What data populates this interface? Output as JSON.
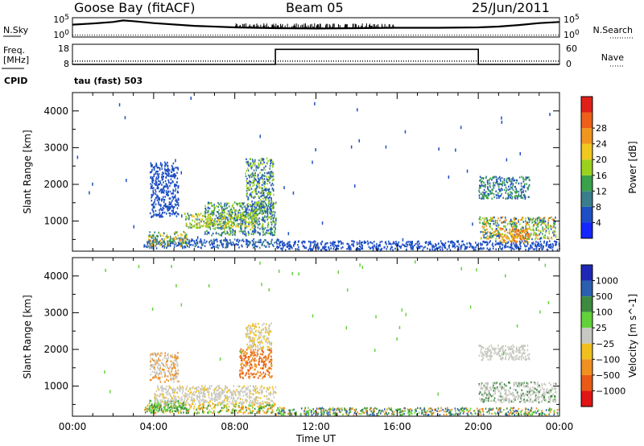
{
  "header": {
    "station": "Goose Bay (fitACF)",
    "beam": "Beam 05",
    "date": "25/Jun/2011"
  },
  "chart_data": [
    {
      "type": "line",
      "panel": "noise",
      "left_label": "N.Sky",
      "right_label": "N.Search",
      "left_ticks": [
        "10^5",
        "10^0"
      ],
      "right_ticks": [
        "10^5",
        "10^0"
      ],
      "x": [
        0,
        1,
        2,
        2.5,
        3,
        4,
        6,
        8,
        10,
        12,
        14,
        16,
        18,
        20,
        21,
        22,
        23,
        24
      ],
      "y": [
        3.2,
        3.5,
        3.9,
        4.3,
        4.1,
        3.6,
        2.9,
        2.5,
        2.3,
        2.2,
        2.3,
        2.4,
        2.4,
        2.5,
        2.7,
        3.1,
        3.6,
        3.9
      ],
      "ylim": [
        0,
        5
      ],
      "xlim": [
        0,
        24
      ],
      "search_noise_level": 0.5
    },
    {
      "type": "line",
      "panel": "frequency",
      "left_label": "Freq. [MHz]",
      "right_label": "Nave",
      "left_ticks": [
        "18",
        "8"
      ],
      "right_ticks": [
        "60",
        "0"
      ],
      "freq_x": [
        0,
        10,
        10,
        20,
        20,
        24
      ],
      "freq_y": [
        8,
        8,
        15.5,
        15.5,
        8,
        8
      ],
      "freq_ylim": [
        8,
        18
      ],
      "nave": 10,
      "nave_ylim": [
        0,
        60
      ]
    },
    {
      "type": "table",
      "panel": "cpid",
      "label": "CPID",
      "text": "tau (fast) 503"
    },
    {
      "type": "heatmap",
      "panel": "power",
      "xlabel": "",
      "ylabel": "Slant Range [km]",
      "xlim": [
        0,
        24
      ],
      "ylim": [
        180,
        4500
      ],
      "yticks": [
        1000,
        2000,
        3000,
        4000
      ],
      "colorbar_label": "Power [dB]",
      "colorbar_ticks": [
        "4",
        "8",
        "12",
        "16",
        "20",
        "24",
        "28"
      ],
      "colorbar_colors": [
        "#1427ff",
        "#1d4ec4",
        "#3a7d8c",
        "#3aa14a",
        "#9bd21e",
        "#f0c81e",
        "#f0961e",
        "#ee5f1a",
        "#e02018"
      ],
      "regions": [
        {
          "t0": 3.5,
          "t1": 10.2,
          "r0": 250,
          "r1": 500,
          "values": [
            4,
            6,
            8
          ]
        },
        {
          "t0": 3.7,
          "t1": 5.6,
          "r0": 300,
          "r1": 700,
          "values": [
            8,
            14,
            20,
            24
          ]
        },
        {
          "t0": 6.5,
          "t1": 10.0,
          "r0": 600,
          "r1": 1500,
          "values": [
            6,
            10,
            14,
            18
          ]
        },
        {
          "t0": 5.5,
          "t1": 9.0,
          "r0": 800,
          "r1": 1200,
          "values": [
            10,
            16,
            20
          ]
        },
        {
          "t0": 3.8,
          "t1": 5.2,
          "r0": 1100,
          "r1": 2600,
          "values": [
            4,
            6
          ]
        },
        {
          "t0": 8.5,
          "t1": 9.9,
          "r0": 1200,
          "r1": 2700,
          "values": [
            4,
            8,
            16
          ]
        },
        {
          "t0": 10.0,
          "t1": 24.0,
          "r0": 200,
          "r1": 450,
          "values": [
            4,
            6
          ]
        },
        {
          "t0": 20.0,
          "t1": 22.5,
          "r0": 1600,
          "r1": 2200,
          "values": [
            4,
            8,
            14
          ]
        },
        {
          "t0": 20.0,
          "t1": 23.8,
          "r0": 500,
          "r1": 1100,
          "values": [
            6,
            12,
            18,
            24
          ]
        },
        {
          "t0": 21.0,
          "t1": 22.5,
          "r0": 400,
          "r1": 800,
          "values": [
            20,
            24,
            28
          ]
        }
      ]
    },
    {
      "type": "heatmap",
      "panel": "velocity",
      "xlabel": "Time UT",
      "ylabel": "Slant Range [km]",
      "xlim": [
        0,
        24
      ],
      "ylim": [
        180,
        4500
      ],
      "yticks": [
        1000,
        2000,
        3000,
        4000
      ],
      "xticks": [
        "00:00",
        "04:00",
        "08:00",
        "12:00",
        "16:00",
        "20:00",
        "00:00"
      ],
      "colorbar_label": "Velocity [m s^-1]",
      "colorbar_ticks": [
        "1000",
        "500",
        "100",
        "25",
        "−25",
        "−100",
        "−500",
        "−1000"
      ],
      "colorbar_colors": [
        "#1e28b4",
        "#2d5fb0",
        "#3e8a40",
        "#62d23a",
        "#c8c8c2",
        "#f0c01e",
        "#ef9020",
        "#e85a16",
        "#e01515"
      ],
      "regions": [
        {
          "t0": 3.5,
          "t1": 10.2,
          "r0": 250,
          "r1": 500,
          "values": [
            25,
            -25,
            100,
            -100
          ]
        },
        {
          "t0": 3.7,
          "t1": 5.6,
          "r0": 300,
          "r1": 600,
          "values": [
            100,
            25
          ]
        },
        {
          "t0": 4.0,
          "t1": 10.0,
          "r0": 500,
          "r1": 1000,
          "values": [
            0,
            0,
            0,
            -25
          ]
        },
        {
          "t0": 8.2,
          "t1": 9.8,
          "r0": 1200,
          "r1": 2000,
          "values": [
            -100,
            -500
          ]
        },
        {
          "t0": 8.5,
          "t1": 9.8,
          "r0": 2000,
          "r1": 2700,
          "values": [
            0,
            -25
          ]
        },
        {
          "t0": 3.8,
          "t1": 5.2,
          "r0": 1100,
          "r1": 1900,
          "values": [
            0,
            -100
          ]
        },
        {
          "t0": 10.0,
          "t1": 24.0,
          "r0": 200,
          "r1": 400,
          "values": [
            100,
            -100,
            25,
            500
          ]
        },
        {
          "t0": 20.0,
          "t1": 22.5,
          "r0": 1700,
          "r1": 2100,
          "values": [
            0
          ]
        },
        {
          "t0": 20.0,
          "t1": 23.8,
          "r0": 550,
          "r1": 1100,
          "values": [
            0,
            0,
            100
          ]
        }
      ]
    }
  ]
}
